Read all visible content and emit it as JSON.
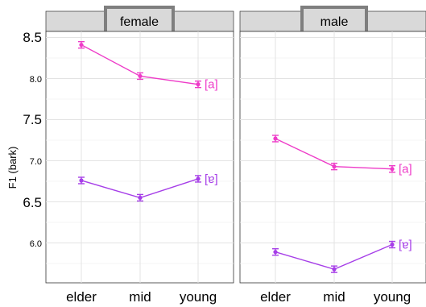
{
  "chart_data": {
    "type": "line",
    "ylabel": "F1 (bark)",
    "categories": [
      "elder",
      "mid",
      "young"
    ],
    "ylim": [
      5.5,
      8.6
    ],
    "yticks_major": [
      "6.5",
      "7.5",
      "8.5"
    ],
    "yticks_minor": [
      "6.0",
      "7.0",
      "8.0"
    ],
    "grid": true,
    "panels": [
      {
        "strip": "female",
        "series": [
          {
            "name": "[a]",
            "color": "#ee3bc8",
            "values": [
              8.41,
              8.03,
              7.93
            ]
          },
          {
            "name": "[ɐ]",
            "color": "#a63ee8",
            "values": [
              6.76,
              6.55,
              6.78
            ]
          }
        ]
      },
      {
        "strip": "male",
        "series": [
          {
            "name": "[a]",
            "color": "#ee3bc8",
            "values": [
              7.27,
              6.93,
              6.9
            ]
          },
          {
            "name": "[ɐ]",
            "color": "#a63ee8",
            "values": [
              5.89,
              5.68,
              5.98
            ]
          }
        ]
      }
    ]
  }
}
